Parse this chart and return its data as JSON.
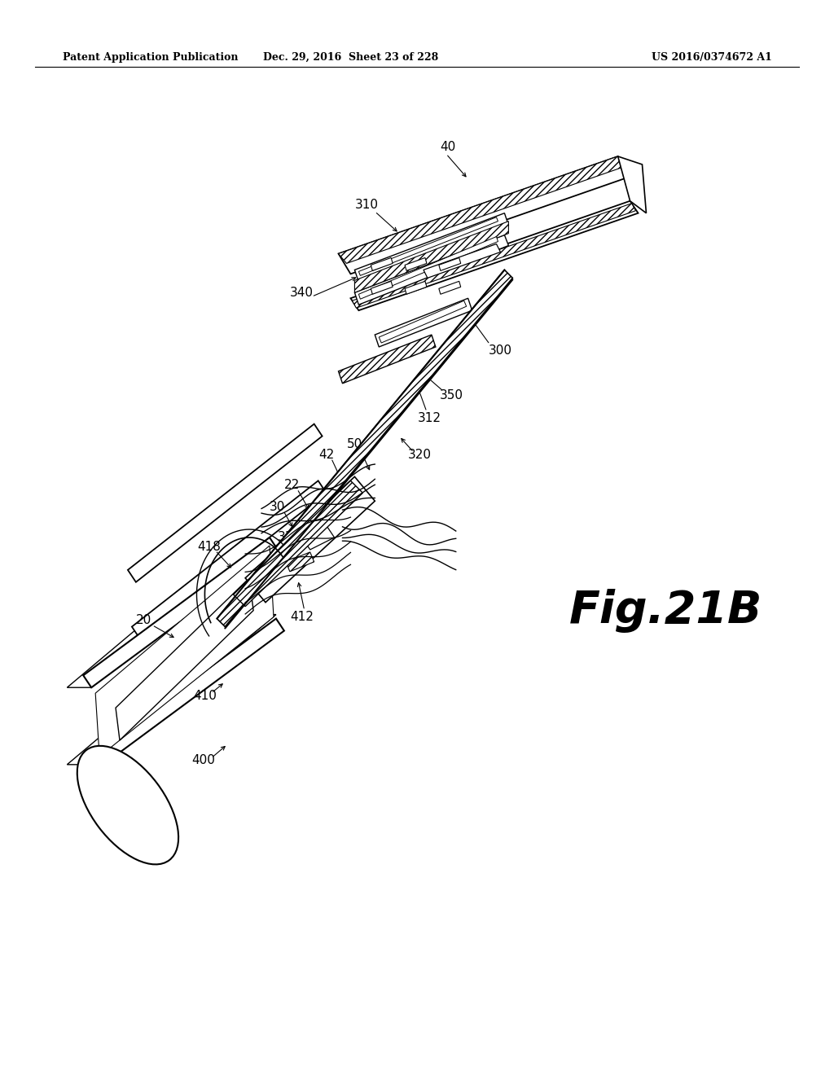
{
  "header_left": "Patent Application Publication",
  "header_center": "Dec. 29, 2016  Sheet 23 of 228",
  "header_right": "US 2016/0374672 A1",
  "fig_label": "Fig.21B",
  "background_color": "#ffffff",
  "line_color": "#000000",
  "fig_width": 10.24,
  "fig_height": 13.2,
  "dpi": 100
}
